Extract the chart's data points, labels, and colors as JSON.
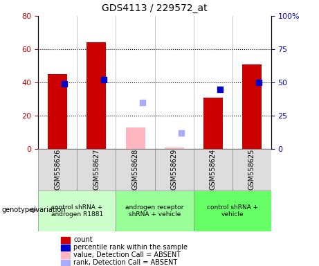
{
  "title": "GDS4113 / 229572_at",
  "samples": [
    "GSM558626",
    "GSM558627",
    "GSM558628",
    "GSM558629",
    "GSM558624",
    "GSM558625"
  ],
  "count_values": [
    45,
    64,
    null,
    null,
    31,
    51
  ],
  "count_absent_values": [
    null,
    null,
    13,
    1,
    null,
    null
  ],
  "percentile_values": [
    49,
    52,
    null,
    null,
    45,
    50
  ],
  "rank_absent_values": [
    null,
    null,
    35,
    12,
    null,
    null
  ],
  "left_ylim": [
    0,
    80
  ],
  "right_ylim": [
    0,
    100
  ],
  "left_yticks": [
    0,
    20,
    40,
    60,
    80
  ],
  "right_yticks": [
    0,
    25,
    50,
    75,
    100
  ],
  "right_yticklabels": [
    "0",
    "25",
    "50",
    "75",
    "100%"
  ],
  "bar_color_red": "#cc0000",
  "bar_color_pink": "#ffb6c1",
  "dot_color_blue": "#0000cc",
  "dot_color_lightblue": "#aaaaff",
  "groups": [
    {
      "label": "control shRNA +\nandrogen R1881",
      "color": "#ccffcc",
      "samples": [
        0,
        1
      ]
    },
    {
      "label": "androgen receptor\nshRNA + vehicle",
      "color": "#99ff99",
      "samples": [
        2,
        3
      ]
    },
    {
      "label": "control shRNA +\nvehicle",
      "color": "#66ff66",
      "samples": [
        4,
        5
      ]
    }
  ],
  "legend_items": [
    {
      "label": "count",
      "color": "#cc0000"
    },
    {
      "label": "percentile rank within the sample",
      "color": "#0000cc"
    },
    {
      "label": "value, Detection Call = ABSENT",
      "color": "#ffb6c1"
    },
    {
      "label": "rank, Detection Call = ABSENT",
      "color": "#aaaaff"
    }
  ],
  "genotype_label": "genotype/variation",
  "bar_width": 0.5,
  "dot_size": 35
}
